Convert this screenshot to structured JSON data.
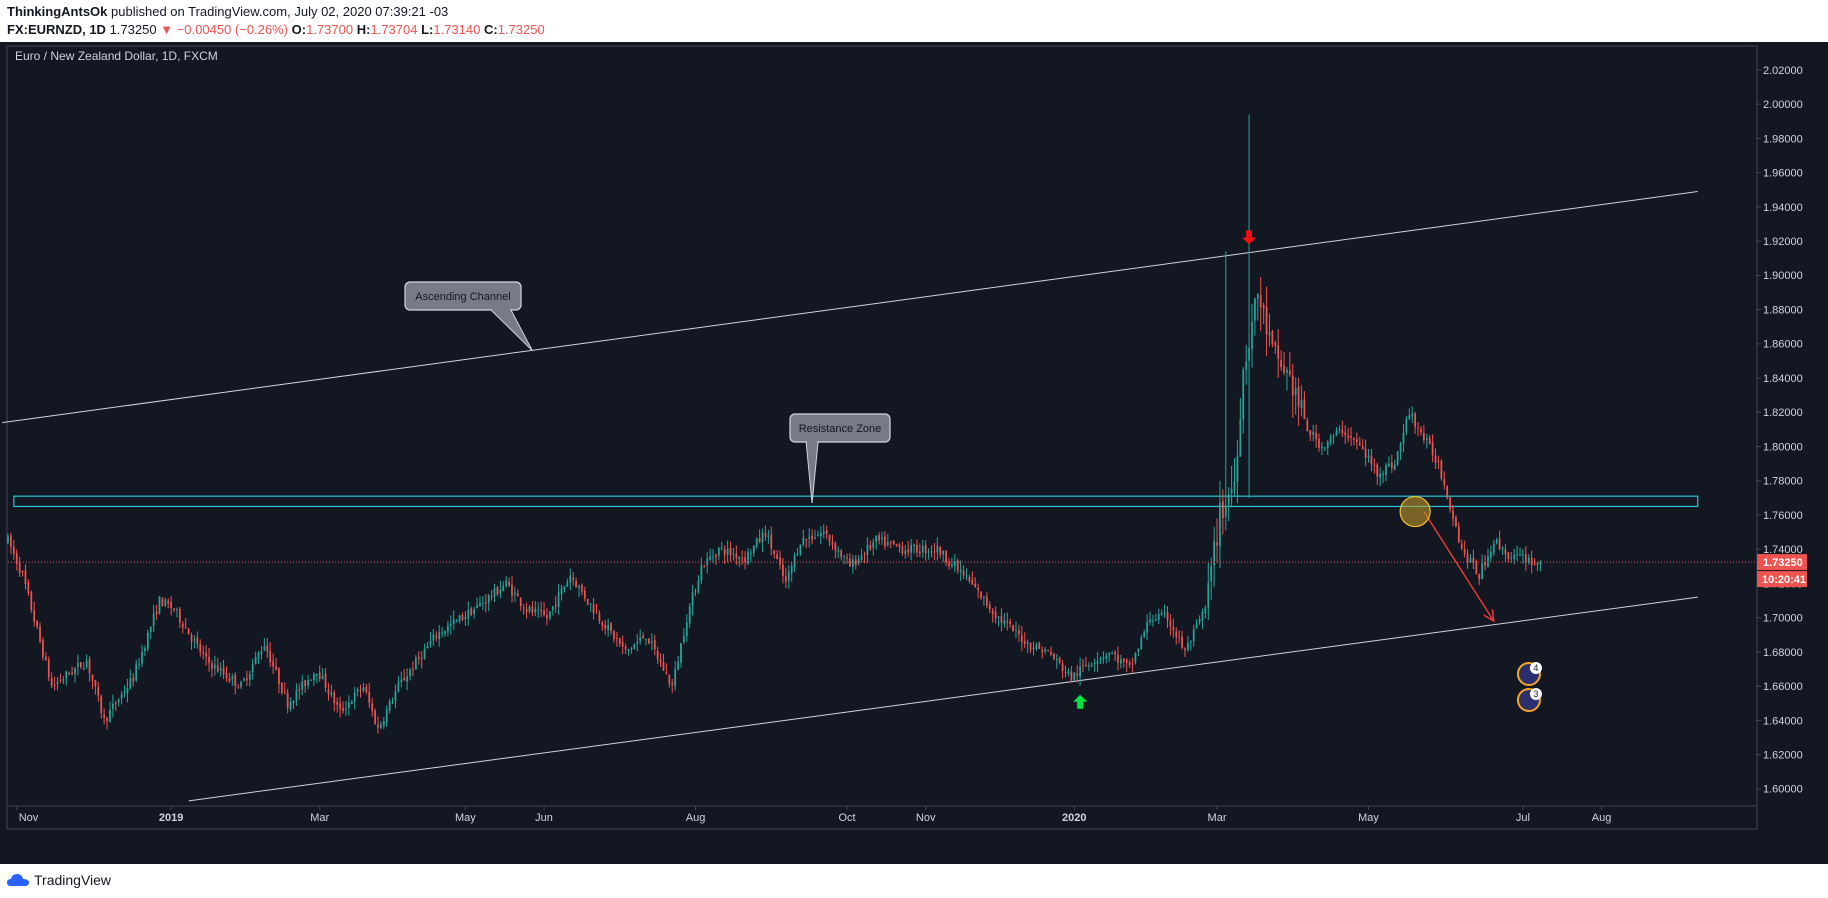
{
  "header": {
    "author": "ThinkingAntsOk",
    "published_text": "published on TradingView.com, July 02, 2020 07:39:21 -03",
    "symbol": "FX:EURNZD, 1D",
    "last": "1.73250",
    "change": "−0.00450 (−0.26%)",
    "o_label": "O:",
    "o_value": "1.73700",
    "h_label": "H:",
    "h_value": "1.73704",
    "l_label": "L:",
    "l_value": "1.73140",
    "c_label": "C:",
    "c_value": "1.73250"
  },
  "footer": {
    "brand": "TradingView"
  },
  "colors": {
    "bull": "#26a69a",
    "bear": "#ef5350",
    "background": "#131722",
    "zone": "#26c6da"
  },
  "chart_data": {
    "type": "candlestick",
    "title": "Euro / New Zealand Dollar, 1D, FXCM",
    "ylim": [
      1.59,
      2.034
    ],
    "xlim": [
      0,
      600
    ],
    "yticks": [
      1.6,
      1.62,
      1.64,
      1.66,
      1.68,
      1.7,
      1.72,
      1.74,
      1.76,
      1.78,
      1.8,
      1.82,
      1.84,
      1.86,
      1.88,
      1.9,
      1.92,
      1.94,
      1.96,
      1.98,
      2.0,
      2.02
    ],
    "xticks": [
      {
        "t": 3,
        "label": "Nov",
        "bold": false
      },
      {
        "t": 56,
        "label": "2019",
        "bold": true
      },
      {
        "t": 107,
        "label": "Mar",
        "bold": false
      },
      {
        "t": 157,
        "label": "May",
        "bold": false
      },
      {
        "t": 184,
        "label": "Jun",
        "bold": false
      },
      {
        "t": 236,
        "label": "Aug",
        "bold": false
      },
      {
        "t": 288,
        "label": "Oct",
        "bold": false
      },
      {
        "t": 315,
        "label": "Nov",
        "bold": false
      },
      {
        "t": 366,
        "label": "2020",
        "bold": true
      },
      {
        "t": 415,
        "label": "Mar",
        "bold": false
      },
      {
        "t": 467,
        "label": "May",
        "bold": false
      },
      {
        "t": 520,
        "label": "Jul",
        "bold": false
      },
      {
        "t": 547,
        "label": "Aug",
        "bold": false
      }
    ],
    "price_path": [
      [
        0,
        1.745
      ],
      [
        5,
        1.725
      ],
      [
        15,
        1.66
      ],
      [
        27,
        1.675
      ],
      [
        33,
        1.64
      ],
      [
        43,
        1.665
      ],
      [
        52,
        1.71
      ],
      [
        57,
        1.705
      ],
      [
        68,
        1.675
      ],
      [
        80,
        1.66
      ],
      [
        88,
        1.685
      ],
      [
        96,
        1.65
      ],
      [
        106,
        1.67
      ],
      [
        114,
        1.645
      ],
      [
        122,
        1.66
      ],
      [
        127,
        1.635
      ],
      [
        134,
        1.66
      ],
      [
        147,
        1.69
      ],
      [
        160,
        1.705
      ],
      [
        171,
        1.72
      ],
      [
        178,
        1.705
      ],
      [
        185,
        1.7
      ],
      [
        193,
        1.725
      ],
      [
        203,
        1.7
      ],
      [
        212,
        1.68
      ],
      [
        219,
        1.69
      ],
      [
        228,
        1.66
      ],
      [
        233,
        1.7
      ],
      [
        238,
        1.73
      ],
      [
        244,
        1.74
      ],
      [
        253,
        1.735
      ],
      [
        260,
        1.75
      ],
      [
        267,
        1.72
      ],
      [
        272,
        1.745
      ],
      [
        280,
        1.75
      ],
      [
        289,
        1.73
      ],
      [
        298,
        1.745
      ],
      [
        308,
        1.74
      ],
      [
        319,
        1.74
      ],
      [
        328,
        1.725
      ],
      [
        340,
        1.7
      ],
      [
        350,
        1.685
      ],
      [
        357,
        1.68
      ],
      [
        365,
        1.665
      ],
      [
        372,
        1.675
      ],
      [
        378,
        1.68
      ],
      [
        385,
        1.67
      ],
      [
        392,
        1.7
      ],
      [
        398,
        1.7
      ],
      [
        404,
        1.68
      ],
      [
        411,
        1.705
      ],
      [
        416,
        1.76
      ],
      [
        421,
        1.78
      ],
      [
        424,
        1.845
      ],
      [
        429,
        1.89
      ],
      [
        434,
        1.855
      ],
      [
        440,
        1.84
      ],
      [
        446,
        1.81
      ],
      [
        451,
        1.8
      ],
      [
        458,
        1.81
      ],
      [
        464,
        1.8
      ],
      [
        470,
        1.785
      ],
      [
        476,
        1.79
      ],
      [
        481,
        1.82
      ],
      [
        486,
        1.805
      ],
      [
        491,
        1.79
      ],
      [
        496,
        1.76
      ],
      [
        499,
        1.74
      ],
      [
        505,
        1.725
      ],
      [
        510,
        1.745
      ],
      [
        516,
        1.735
      ],
      [
        521,
        1.735
      ],
      [
        526,
        1.73
      ]
    ],
    "last_price": 1.7325,
    "last_price_label": "1.73250",
    "countdown_label": "10:20:41",
    "channel_upper": [
      [
        -2,
        1.814
      ],
      [
        580,
        1.949
      ]
    ],
    "channel_lower": [
      [
        62,
        1.593
      ],
      [
        580,
        1.712
      ]
    ],
    "resistance_zone": [
      1.765,
      1.771
    ],
    "zone_x": [
      2,
      580
    ],
    "annotations": [
      {
        "text": "Ascending Channel",
        "anchor": [
          180,
          1.856
        ]
      },
      {
        "text": "Resistance Zone",
        "anchor": [
          276,
          1.767
        ]
      }
    ],
    "projection": {
      "from": [
        486,
        1.762
      ],
      "to": [
        510,
        1.698
      ]
    },
    "circle_marker": {
      "t": 483,
      "price": 1.762
    },
    "down_arrow": {
      "t": 426,
      "price": 1.918
    },
    "up_arrow": {
      "t": 368,
      "price": 1.655
    },
    "event_badges": [
      "4",
      "3"
    ]
  }
}
